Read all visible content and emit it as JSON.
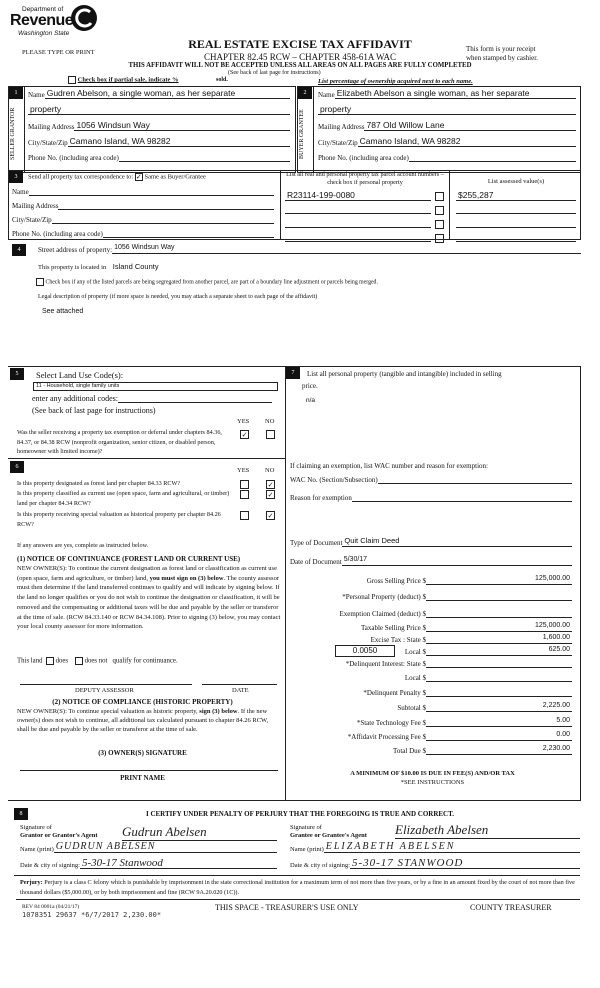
{
  "header": {
    "logo_line1": "Department of",
    "logo_line2": "Revenue",
    "logo_line3": "Washington State",
    "please": "PLEASE TYPE OR PRINT",
    "title": "REAL ESTATE EXCISE TAX AFFIDAVIT",
    "chapter": "CHAPTER 82.45 RCW – CHAPTER 458-61A WAC",
    "warning": "THIS AFFIDAVIT WILL NOT BE ACCEPTED UNLESS ALL AREAS ON ALL PAGES ARE FULLY COMPLETED",
    "see_back": "(See back of last page for instructions)",
    "receipt_note_1": "This form is your receipt",
    "receipt_note_2": "when stamped by cashier.",
    "partial_sale": "Check box if partial sale, indicate %",
    "sold": "sold.",
    "ownership_note": "List percentage of ownership acquired next to each name."
  },
  "seller": {
    "num": "1",
    "side_label": "SELLER GRANTOR",
    "name_label": "Name",
    "name": "Gudren Abelson, a single woman, as her separate",
    "name_cont": "property",
    "mailing_label": "Mailing Address",
    "mailing": "1056 Windsun Way",
    "city_label": "City/State/Zip",
    "city": "Camano Island, WA 98282",
    "phone_label": "Phone No. (including area code)",
    "phone": ""
  },
  "buyer": {
    "num": "2",
    "side_label": "BUYER GRANTEE",
    "name_label": "Name",
    "name": "Elizabeth Abelson a single woman, as her separate",
    "name_cont": "property",
    "mailing_label": "Mailing Address",
    "mailing": "787 Old Willow Lane",
    "city_label": "City/State/Zip",
    "city": "Camano Island, WA 98282",
    "phone_label": "Phone No. (including area code)",
    "phone": ""
  },
  "correspondence": {
    "num": "3",
    "label": "Send all property tax correspondence to:",
    "same_as_buyer": "Same as Buyer/Grantee",
    "same_checked": true,
    "name_label": "Name",
    "mailing_label": "Mailing Address",
    "city_label": "City/State/Zip",
    "phone_label": "Phone No. (including area code)"
  },
  "parcels": {
    "header": "List all real and personal property tax parcel account numbers – check box if personal property",
    "assessed_header": "List assessed value(s)",
    "rows": [
      {
        "number": "R23114-199-0080",
        "personal": false,
        "value": "$255,287"
      },
      {
        "number": "",
        "personal": false,
        "value": ""
      },
      {
        "number": "",
        "personal": false,
        "value": ""
      },
      {
        "number": "",
        "personal": false,
        "value": ""
      }
    ]
  },
  "property": {
    "num": "4",
    "street_label": "Street address of property:",
    "street": "1056 Windsun Way",
    "located_label": "This property is located in",
    "located": "Island County",
    "segregated_label": "Check box if any of the listed parcels are being segregated from another parcel, are part of a boundary line adjustment or parcels being merged.",
    "segregated_checked": false,
    "legal_label": "Legal description of property (if more space is needed, you may attach a separate sheet to each page of the affidavit)",
    "legal": "See attached"
  },
  "land_use": {
    "num": "5",
    "label": "Select Land Use Code(s):",
    "code": "11 - Household, single family units",
    "additional_label": "enter any additional codes:",
    "see_back": "(See back of last page for instructions)",
    "yes": "YES",
    "no": "NO",
    "question": "Was the seller receiving a property tax exemption or deferral under chapters 84.36, 84.37, or 84.38 RCW (nonprofit organization, senior citizen, or disabled person, homeowner with limited income)?",
    "answer": "yes"
  },
  "designation": {
    "num": "6",
    "yes": "YES",
    "no": "NO",
    "questions": [
      {
        "text": "Is this property designated as forest land per chapter 84.33 RCW?",
        "answer": "no"
      },
      {
        "text": "Is this property classified as current use (open space, farm and agricultural, or timber) land per chapter 84.34 RCW?",
        "answer": "no"
      },
      {
        "text": "Is this property receiving special valuation as historical property per chapter 84.26 RCW?",
        "answer": "no"
      }
    ],
    "if_yes": "If any answers are yes, complete as instructed below.",
    "notice1_title": "(1) NOTICE OF CONTINUANCE  (FOREST LAND OR CURRENT USE)",
    "notice1_a": "NEW OWNER(S): To continue the current designation as forest land or classification as current use (open space, farm and agriculture, or timber) land,",
    "notice1_bold": "you must sign on (3) below",
    "notice1_b": ". The county assessor must then determine if the land transferred continues to qualify and will indicate by signing below. If the land no longer qualifies or you do not wish to continue the designation or classification, it will be removed and the compensating or additional taxes will be due and payable by the seller or transferor at the time of sale. (RCW 84.33.140 or RCW 84.34.108). Prior to signing (3) below, you may contact your local county assessor for more information.",
    "this_land": "This land",
    "does": "does",
    "does_not": "does not",
    "qualify": "qualify for continuance.",
    "deputy": "DEPUTY ASSESSOR",
    "date": "DATE",
    "notice2_title": "(2) NOTICE OF COMPLIANCE (HISTORIC PROPERTY)",
    "notice2_a": "NEW OWNER(S): To continue special valuation as historic property,",
    "notice2_bold": "sign (3) below",
    "notice2_b": ". If the new owner(s) does not wish to continue, all additional tax calculated pursuant to chapter 84.26 RCW, shall be due and payable by the seller or transferor at the time of sale.",
    "owner_sig": "(3)  OWNER(S) SIGNATURE",
    "print_name": "PRINT NAME"
  },
  "personal_property": {
    "num": "7",
    "label": "List all  personal property (tangible and intangible) included in selling",
    "label_cont": "price.",
    "value": "n/a",
    "exemption_label": "If claiming an exemption, list WAC number and reason for exemption:",
    "wac_label": "WAC No. (Section/Subsection)",
    "wac": "",
    "reason_label": "Reason for exemption",
    "reason": "",
    "doc_type_label": "Type of Document",
    "doc_type": "Quit Claim Deed",
    "doc_date_label": "Date of Document",
    "doc_date": "5/30/17"
  },
  "tax": {
    "rows": [
      {
        "label": "Gross Selling Price $",
        "value": "125,000.00"
      },
      {
        "label": "*Personal Property (deduct) $",
        "value": ""
      },
      {
        "label": "Exemption Claimed (deduct) $",
        "value": ""
      },
      {
        "label": "Taxable Selling Price $",
        "value": "125,000.00"
      },
      {
        "label": "Excise Tax : State $",
        "value": "1,600.00"
      },
      {
        "label": "Local $",
        "value": "625.00"
      },
      {
        "label": "*Delinquent Interest: State $",
        "value": ""
      },
      {
        "label": "Local $",
        "value": ""
      },
      {
        "label": "*Delinquent Penalty $",
        "value": ""
      },
      {
        "label": "Subtotal $",
        "value": "2,225.00"
      },
      {
        "label": "*State Technology Fee $",
        "value": "5.00"
      },
      {
        "label": "*Affidavit Processing Fee $",
        "value": "0.00"
      },
      {
        "label": "Total Due $",
        "value": "2,230.00"
      }
    ],
    "local_rate": "0.0050",
    "minimum": "A MINIMUM OF $10.00 IS DUE IN FEE(S) AND/OR TAX",
    "see_instr": "*SEE INSTRUCTIONS"
  },
  "certify": {
    "num": "8",
    "title": "I CERTIFY UNDER PENALTY OF PERJURY THAT THE FOREGOING IS TRUE AND CORRECT.",
    "grantor_sig_label1": "Signature of",
    "grantor_sig_label2": "Grantor or Grantor's Agent",
    "grantor_sig": "Gudrun Abelsen",
    "grantor_name_label": "Name (print)",
    "grantor_name": "GUDRUN ABELSEN",
    "grantor_date_label": "Date & city of signing:",
    "grantor_date": "5-30-17 Stanwood",
    "grantee_sig_label1": "Signature of",
    "grantee_sig_label2": "Grantee or Grantee's Agent",
    "grantee_sig": "Elizabeth Abelsen",
    "grantee_name_label": "Name (print)",
    "grantee_name": "ELIZABETH ABELSEN",
    "grantee_date_label": "Date & city of signing:",
    "grantee_date": "5-30-17 STANWOOD",
    "perjury_bold": "Perjury:",
    "perjury": " Perjury is a class C felony which is punishable by imprisonment in the state correctional institution for a maximum term of not more than five years, or by a fine in an amount fixed by the court of not more than five thousand dollars ($5,000.00), or by both imprisonment and fine (RCW 9A.20.020 (1C))."
  },
  "footer": {
    "form_no": "REV 84 0001a (04/21/17)",
    "stamp": "1078351 29637 *6/7/2017 2,230.00*",
    "treasurer_use": "THIS SPACE - TREASURER'S USE ONLY",
    "county_treasurer": "COUNTY TREASURER"
  }
}
